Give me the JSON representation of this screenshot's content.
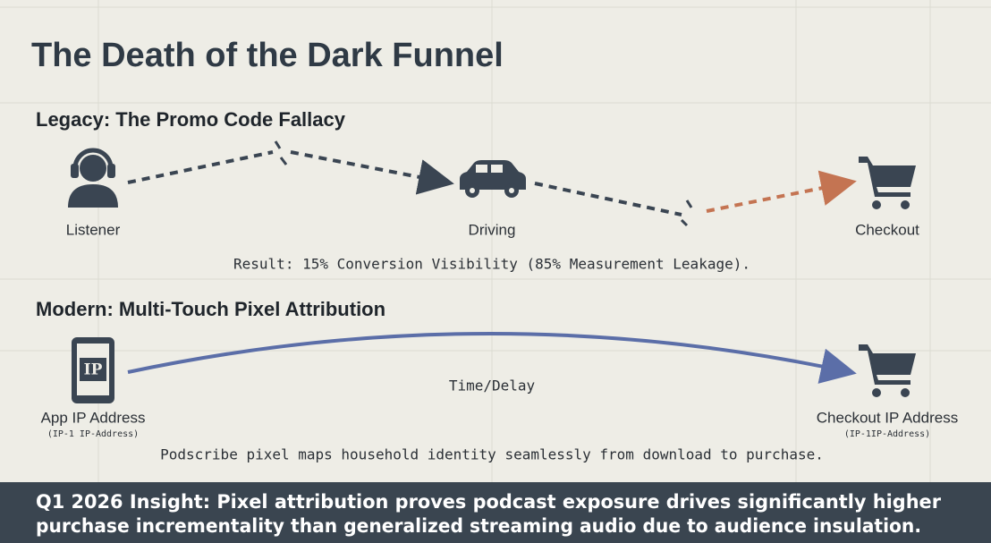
{
  "title": "The Death of the Dark Funnel",
  "legacy": {
    "heading": "Legacy: The Promo Code Fallacy",
    "nodes": [
      {
        "label": "Listener"
      },
      {
        "label": "Driving"
      },
      {
        "label": "Checkout"
      }
    ],
    "result": "Result: 15% Conversion Visibility (85% Measurement Leakage)."
  },
  "modern": {
    "heading": "Modern: Multi-Touch Pixel Attribution",
    "nodes": [
      {
        "icon_text": "IP",
        "label": "App IP Address",
        "sublabel": "(IP-1 IP-Address)"
      },
      {
        "label": "Checkout IP Address",
        "sublabel": "(IP-1IP-Address)"
      }
    ],
    "edge_label": "Time/Delay",
    "caption": "Podscribe pixel maps household identity seamlessly from download to purchase."
  },
  "footer": {
    "lines": [
      "Q1 2026 Insight: Pixel attribution proves podcast exposure drives significantly higher",
      "purchase incrementality than generalized streaming audio due to audience insulation."
    ]
  }
}
